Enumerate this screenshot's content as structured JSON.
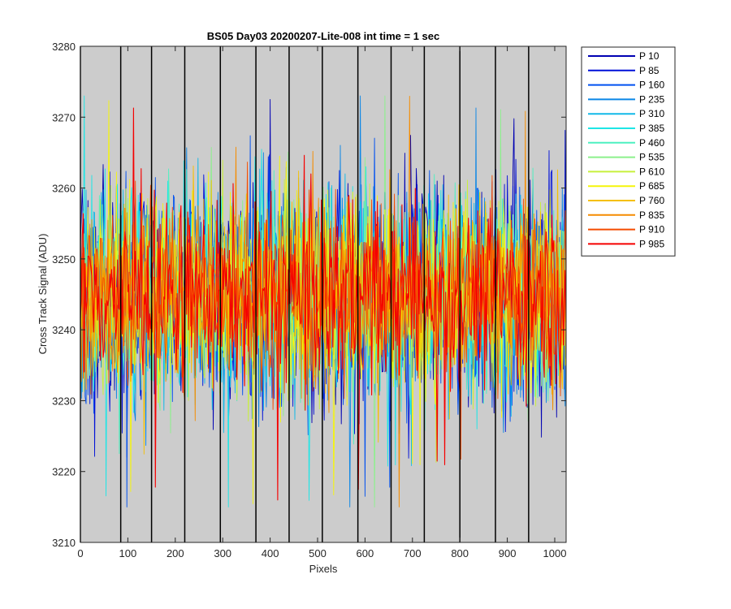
{
  "chart_data": {
    "type": "line",
    "title": "BS05 Day03 20200207-Lite-008 int time = 1 sec",
    "xlabel": "Pixels",
    "ylabel": "Cross Track Signal (ADU)",
    "xlim": [
      0,
      1024
    ],
    "ylim": [
      3210,
      3280
    ],
    "xticks": [
      0,
      100,
      200,
      300,
      400,
      500,
      600,
      700,
      800,
      900,
      1000
    ],
    "yticks": [
      3210,
      3220,
      3230,
      3240,
      3250,
      3260,
      3270,
      3280
    ],
    "plot_background": "#cccccc",
    "vertical_markers": [
      0,
      85,
      150,
      220,
      295,
      370,
      440,
      510,
      585,
      655,
      725,
      800,
      875,
      945
    ],
    "legend_position": "outside-right-top",
    "noise": {
      "mean": 3245,
      "amplitude": 8,
      "min_observed": 3215,
      "max_observed": 3273
    },
    "series": [
      {
        "name": "P 10",
        "color": "#0000b3"
      },
      {
        "name": "P 85",
        "color": "#0010d8"
      },
      {
        "name": "P 160",
        "color": "#0050f0"
      },
      {
        "name": "P 235",
        "color": "#0a86e6"
      },
      {
        "name": "P 310",
        "color": "#12b9e8"
      },
      {
        "name": "P 385",
        "color": "#1ee6e6"
      },
      {
        "name": "P 460",
        "color": "#4df0c0"
      },
      {
        "name": "P 535",
        "color": "#8cf08c"
      },
      {
        "name": "P 610",
        "color": "#c8f03c"
      },
      {
        "name": "P 685",
        "color": "#f5f50a"
      },
      {
        "name": "P 760",
        "color": "#f5c000"
      },
      {
        "name": "P 835",
        "color": "#f58c00"
      },
      {
        "name": "P 910",
        "color": "#f54b00"
      },
      {
        "name": "P 985",
        "color": "#f50000"
      }
    ]
  }
}
